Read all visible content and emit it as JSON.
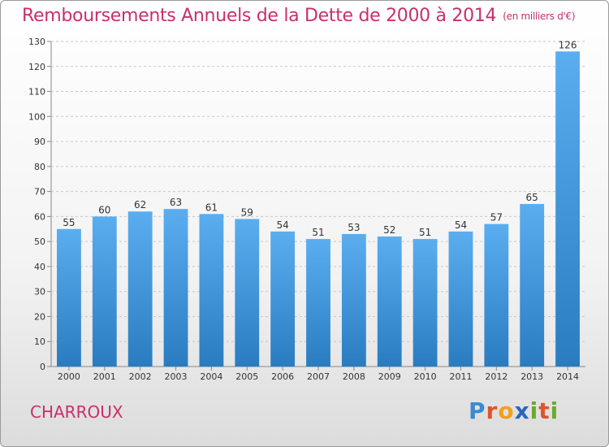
{
  "title": {
    "main": "Remboursements Annuels de la Dette de 2000 à 2014",
    "unit": "(en milliers d'€)"
  },
  "commune": "CHARROUX",
  "brand": {
    "letters": [
      "P",
      "r",
      "o",
      "x",
      "i",
      "t",
      "i"
    ],
    "colors": [
      "#3a8bd0",
      "#e0542a",
      "#f0a020",
      "#2a66c0",
      "#6aaa2a",
      "#e0542a",
      "#6aaa2a"
    ]
  },
  "chart_data": {
    "type": "bar",
    "title": "Remboursements Annuels de la Dette de 2000 à 2014",
    "categories": [
      "2000",
      "2001",
      "2002",
      "2003",
      "2004",
      "2005",
      "2006",
      "2007",
      "2008",
      "2009",
      "2010",
      "2011",
      "2012",
      "2013",
      "2014"
    ],
    "values": [
      55,
      60,
      62,
      63,
      61,
      59,
      54,
      51,
      53,
      52,
      51,
      54,
      57,
      65,
      126
    ],
    "ylim": [
      0,
      130
    ],
    "yticks": [
      0,
      10,
      20,
      30,
      40,
      50,
      60,
      70,
      80,
      90,
      100,
      110,
      120,
      130
    ],
    "grid": true,
    "bar_color_top": "#5aaef0",
    "bar_color_bottom": "#2a7cc0",
    "grid_color": "#c8c8c8"
  }
}
